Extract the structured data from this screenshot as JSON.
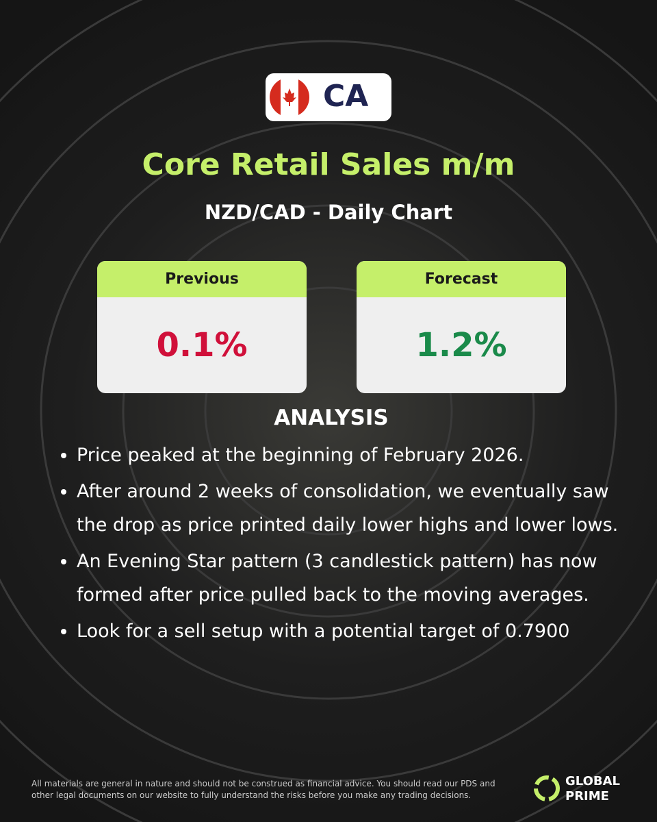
{
  "badge": {
    "code": "CA"
  },
  "header": {
    "title": "Core Retail Sales m/m",
    "subtitle": "NZD/CAD - Daily Chart"
  },
  "cards": [
    {
      "label": "Previous",
      "value": "0.1%"
    },
    {
      "label": "Forecast",
      "value": "1.2%"
    }
  ],
  "analysis": {
    "title": "ANALYSIS",
    "bullets": [
      "Price peaked at the beginning of February 2026.",
      "After around 2 weeks of consolidation, we eventually saw the drop as price printed daily lower highs and lower lows.",
      "An Evening Star pattern (3 candlestick pattern) has now formed after price pulled back to the moving averages.",
      "Look for a sell setup with a potential target of 0.7900"
    ]
  },
  "footer": {
    "disclaimer": "All materials are general in nature and should not be construed as financial advice. You should read our PDS and other legal documents on our website to fully understand the risks before you make any trading decisions.",
    "brand_line1": "GLOBAL",
    "brand_line2": "PRIME"
  }
}
